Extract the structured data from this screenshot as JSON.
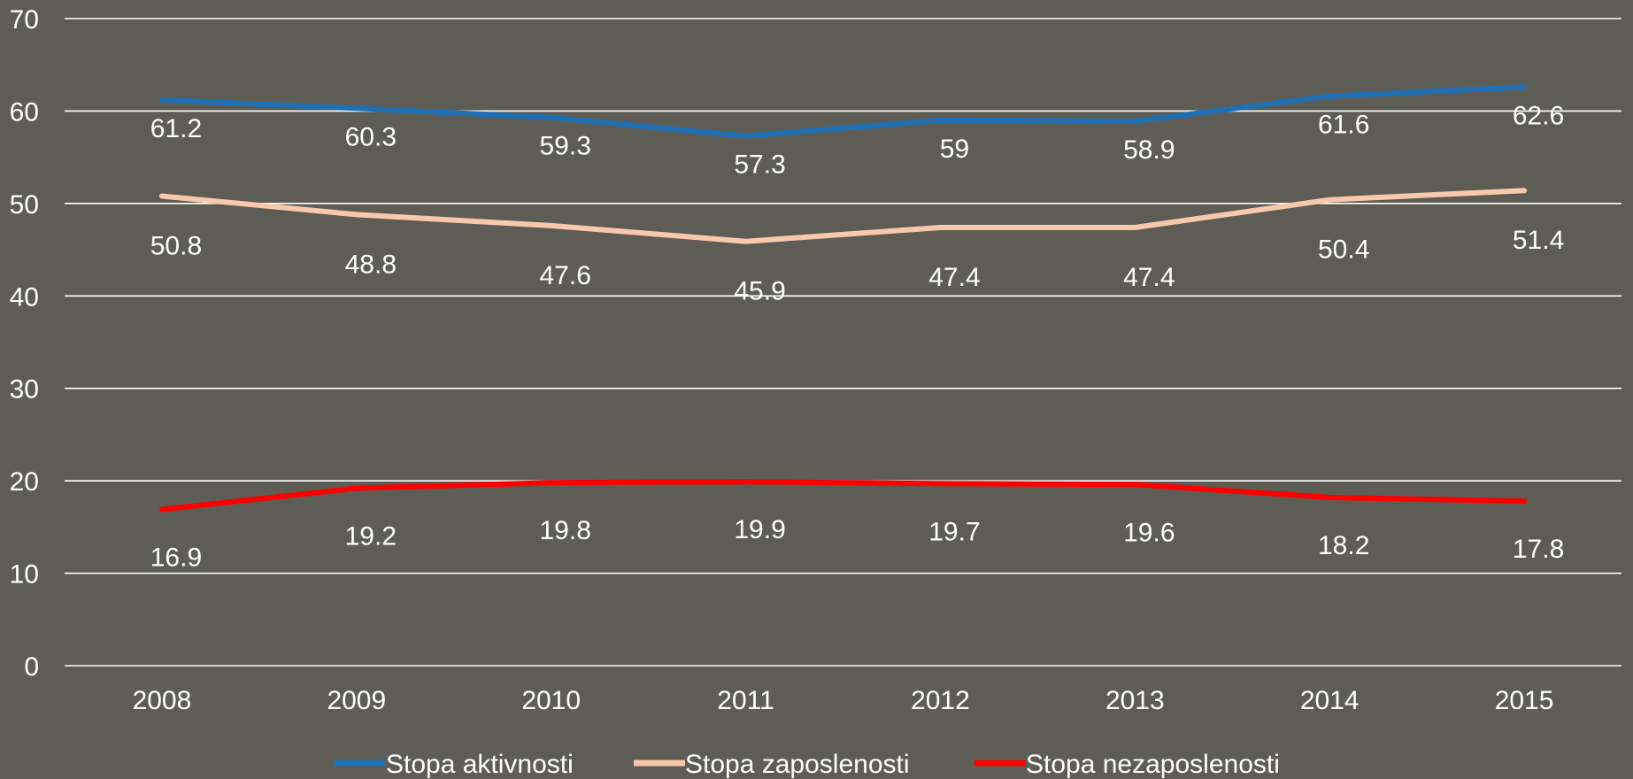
{
  "chart_data": {
    "type": "line",
    "title": "",
    "xlabel": "",
    "ylabel": "",
    "categories": [
      "2008",
      "2009",
      "2010",
      "2011",
      "2012",
      "2013",
      "2014",
      "2015"
    ],
    "ylim": [
      0,
      70
    ],
    "y_ticks": [
      0,
      10,
      20,
      30,
      40,
      50,
      60,
      70
    ],
    "grid": true,
    "legend_position": "bottom",
    "series": [
      {
        "name": "Stopa aktivnosti",
        "color": "#1f6fb5",
        "values": [
          61.2,
          60.3,
          59.3,
          57.3,
          59,
          58.9,
          61.6,
          62.6
        ],
        "labels": [
          "61.2",
          "60.3",
          "59.3",
          "57.3",
          "59",
          "58.9",
          "61.6",
          "62.6"
        ]
      },
      {
        "name": "Stopa zaposlenosti",
        "color": "#f9c8ac",
        "values": [
          50.8,
          48.8,
          47.6,
          45.9,
          47.4,
          47.4,
          50.4,
          51.4
        ],
        "labels": [
          "50.8",
          "48.8",
          "47.6",
          "45.9",
          "47.4",
          "47.4",
          "50.4",
          "51.4"
        ]
      },
      {
        "name": "Stopa nezaposlenosti",
        "color": "#ff0000",
        "values": [
          16.9,
          19.2,
          19.8,
          19.9,
          19.7,
          19.6,
          18.2,
          17.8
        ],
        "labels": [
          "16.9",
          "19.2",
          "19.8",
          "19.9",
          "19.7",
          "19.6",
          "18.2",
          "17.8"
        ]
      }
    ]
  }
}
